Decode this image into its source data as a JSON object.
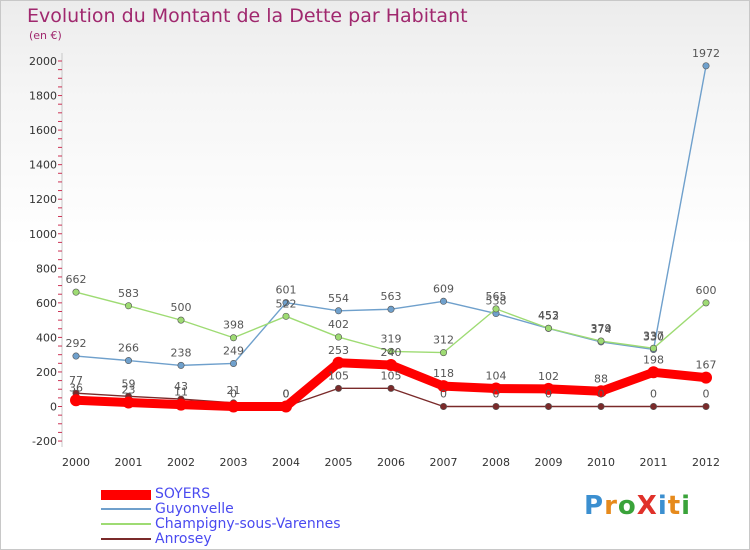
{
  "title": "Evolution du Montant de la Dette par Habitant",
  "subtitle": "(en €)",
  "logo": {
    "text": "ProXiti",
    "colors": [
      "#3b8fd0",
      "#e68a1c",
      "#3aa33a",
      "#e0312a",
      "#3b8fd0",
      "#e68a1c",
      "#3aa33a"
    ]
  },
  "chart_data": {
    "type": "line",
    "x": [
      "2000",
      "2001",
      "2002",
      "2003",
      "2004",
      "2005",
      "2006",
      "2007",
      "2008",
      "2009",
      "2010",
      "2011",
      "2012"
    ],
    "ylim": [
      -200,
      2000
    ],
    "yticks": [
      "-200",
      "0",
      "200",
      "400",
      "600",
      "800",
      "1000",
      "1200",
      "1400",
      "1600",
      "1800",
      "2000"
    ],
    "grid": false,
    "legend_position": "bottom-left",
    "series": [
      {
        "name": "SOYERS",
        "color": "#ff0000",
        "values": [
          36,
          23,
          11,
          0,
          0,
          253,
          240,
          118,
          104,
          102,
          88,
          198,
          167
        ]
      },
      {
        "name": "Guyonvelle",
        "color": "#6fa0cc",
        "values": [
          292,
          266,
          238,
          249,
          601,
          554,
          563,
          609,
          538,
          452,
          374,
          330,
          1972
        ]
      },
      {
        "name": "Champigny-sous-Varennes",
        "color": "#9edb73",
        "values": [
          662,
          583,
          500,
          398,
          522,
          402,
          319,
          312,
          565,
          453,
          379,
          337,
          600
        ]
      },
      {
        "name": "Anrosey",
        "color": "#7a2a2a",
        "values": [
          77,
          59,
          43,
          21,
          0,
          105,
          105,
          0,
          0,
          0,
          0,
          0,
          0
        ]
      }
    ]
  }
}
